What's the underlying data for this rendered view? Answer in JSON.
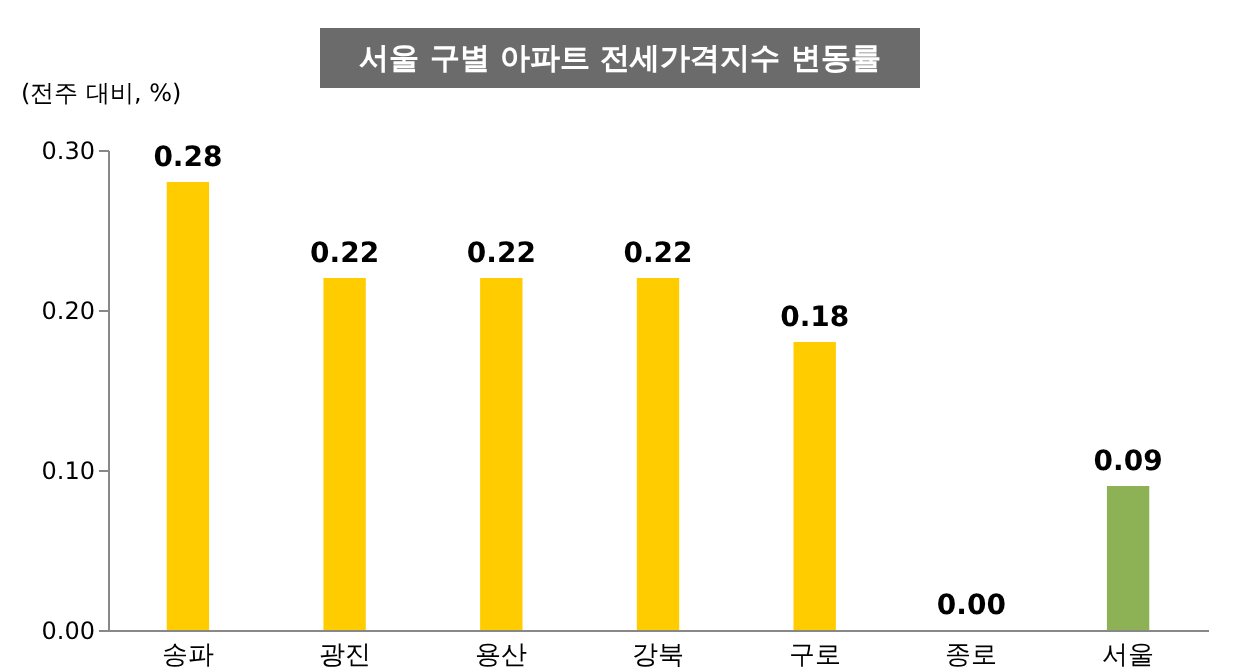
{
  "chart_data": {
    "type": "bar",
    "title": "서울 구별 아파트 전세가격지수 변동률",
    "ylabel": "(전주 대비, %)",
    "categories": [
      "송파",
      "광진",
      "용산",
      "강북",
      "구로",
      "종로",
      "서울"
    ],
    "values": [
      0.28,
      0.22,
      0.22,
      0.22,
      0.18,
      0.0,
      0.09
    ],
    "value_labels": [
      "0.28",
      "0.22",
      "0.22",
      "0.22",
      "0.18",
      "0.00",
      "0.09"
    ],
    "colors": [
      "#ffcc00",
      "#ffcc00",
      "#ffcc00",
      "#ffcc00",
      "#ffcc00",
      "#ffcc00",
      "#8db255"
    ],
    "ylim": [
      0,
      0.3
    ],
    "yticks": [
      {
        "value": 0,
        "label": "0.00"
      },
      {
        "value": 0.1,
        "label": "0.10"
      },
      {
        "value": 0.2,
        "label": "0.20"
      },
      {
        "value": 0.3,
        "label": "0.30"
      }
    ],
    "grid": false,
    "legend": false
  }
}
